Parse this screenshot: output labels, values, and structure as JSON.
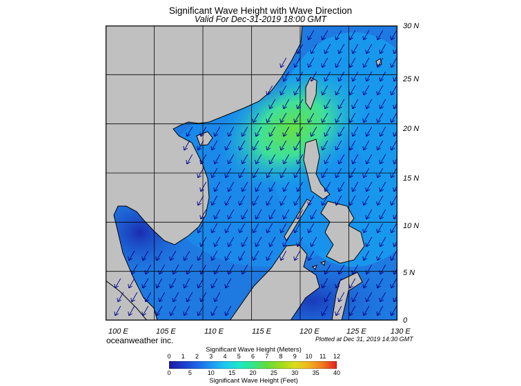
{
  "title": "Significant Wave Height with Wave Direction",
  "subtitle": "Valid For Dec-31-2019 18:00 GMT",
  "credit": "oceanweather inc.",
  "plotted": "Plotted at Dec 31, 2019 14:30 GMT",
  "lat_labels": [
    "30 N",
    "25 N",
    "20 N",
    "15 N",
    "10 N",
    "5 N",
    "0"
  ],
  "lon_labels": [
    "100 E",
    "105 E",
    "110 E",
    "115 E",
    "120 E",
    "125 E",
    "130 E"
  ],
  "colorbar": {
    "title_meters": "Significant Wave Height (Meters)",
    "title_feet": "Significant Wave Height (Feet)",
    "meters_ticks": [
      "0",
      "1",
      "2",
      "3",
      "4",
      "5",
      "6",
      "7",
      "8",
      "9",
      "10",
      "11",
      "12"
    ],
    "feet_ticks": [
      "0",
      "5",
      "10",
      "15",
      "20",
      "25",
      "30",
      "35",
      "40"
    ],
    "colors": [
      "#1a1aa0",
      "#1e3cc8",
      "#1e64e6",
      "#1e96f0",
      "#1ec8f0",
      "#1ee6c8",
      "#32e68c",
      "#64dc3c",
      "#a0dc1e",
      "#dcdc1e",
      "#f0b41e",
      "#f0781e",
      "#e61e1e"
    ]
  },
  "colors": {
    "land": "#c0c0c0",
    "coast": "#000000",
    "grid": "#000000",
    "arrow": "#00008c"
  }
}
